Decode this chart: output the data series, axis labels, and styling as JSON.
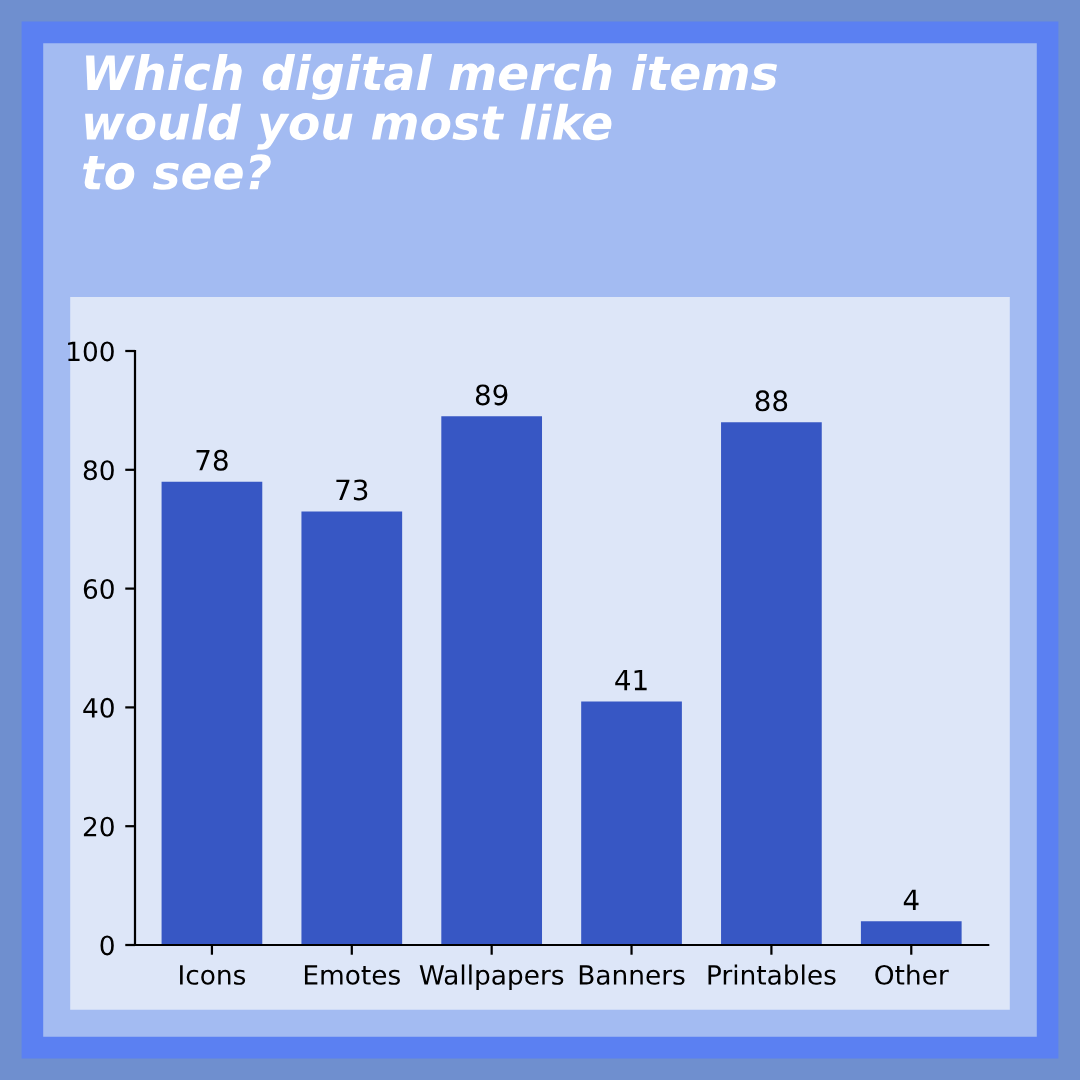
{
  "chart_data": {
    "type": "bar",
    "title": "Which digital merch items\nwould you most like\nto see?",
    "categories": [
      "Icons",
      "Emotes",
      "Wallpapers",
      "Banners",
      "Printables",
      "Other"
    ],
    "values": [
      78,
      73,
      89,
      41,
      88,
      4
    ],
    "color": "#3757c4",
    "ylim": [
      0,
      100
    ],
    "yticks": [
      0,
      20,
      40,
      60,
      80,
      100
    ],
    "data_labels": true,
    "grid": false
  }
}
